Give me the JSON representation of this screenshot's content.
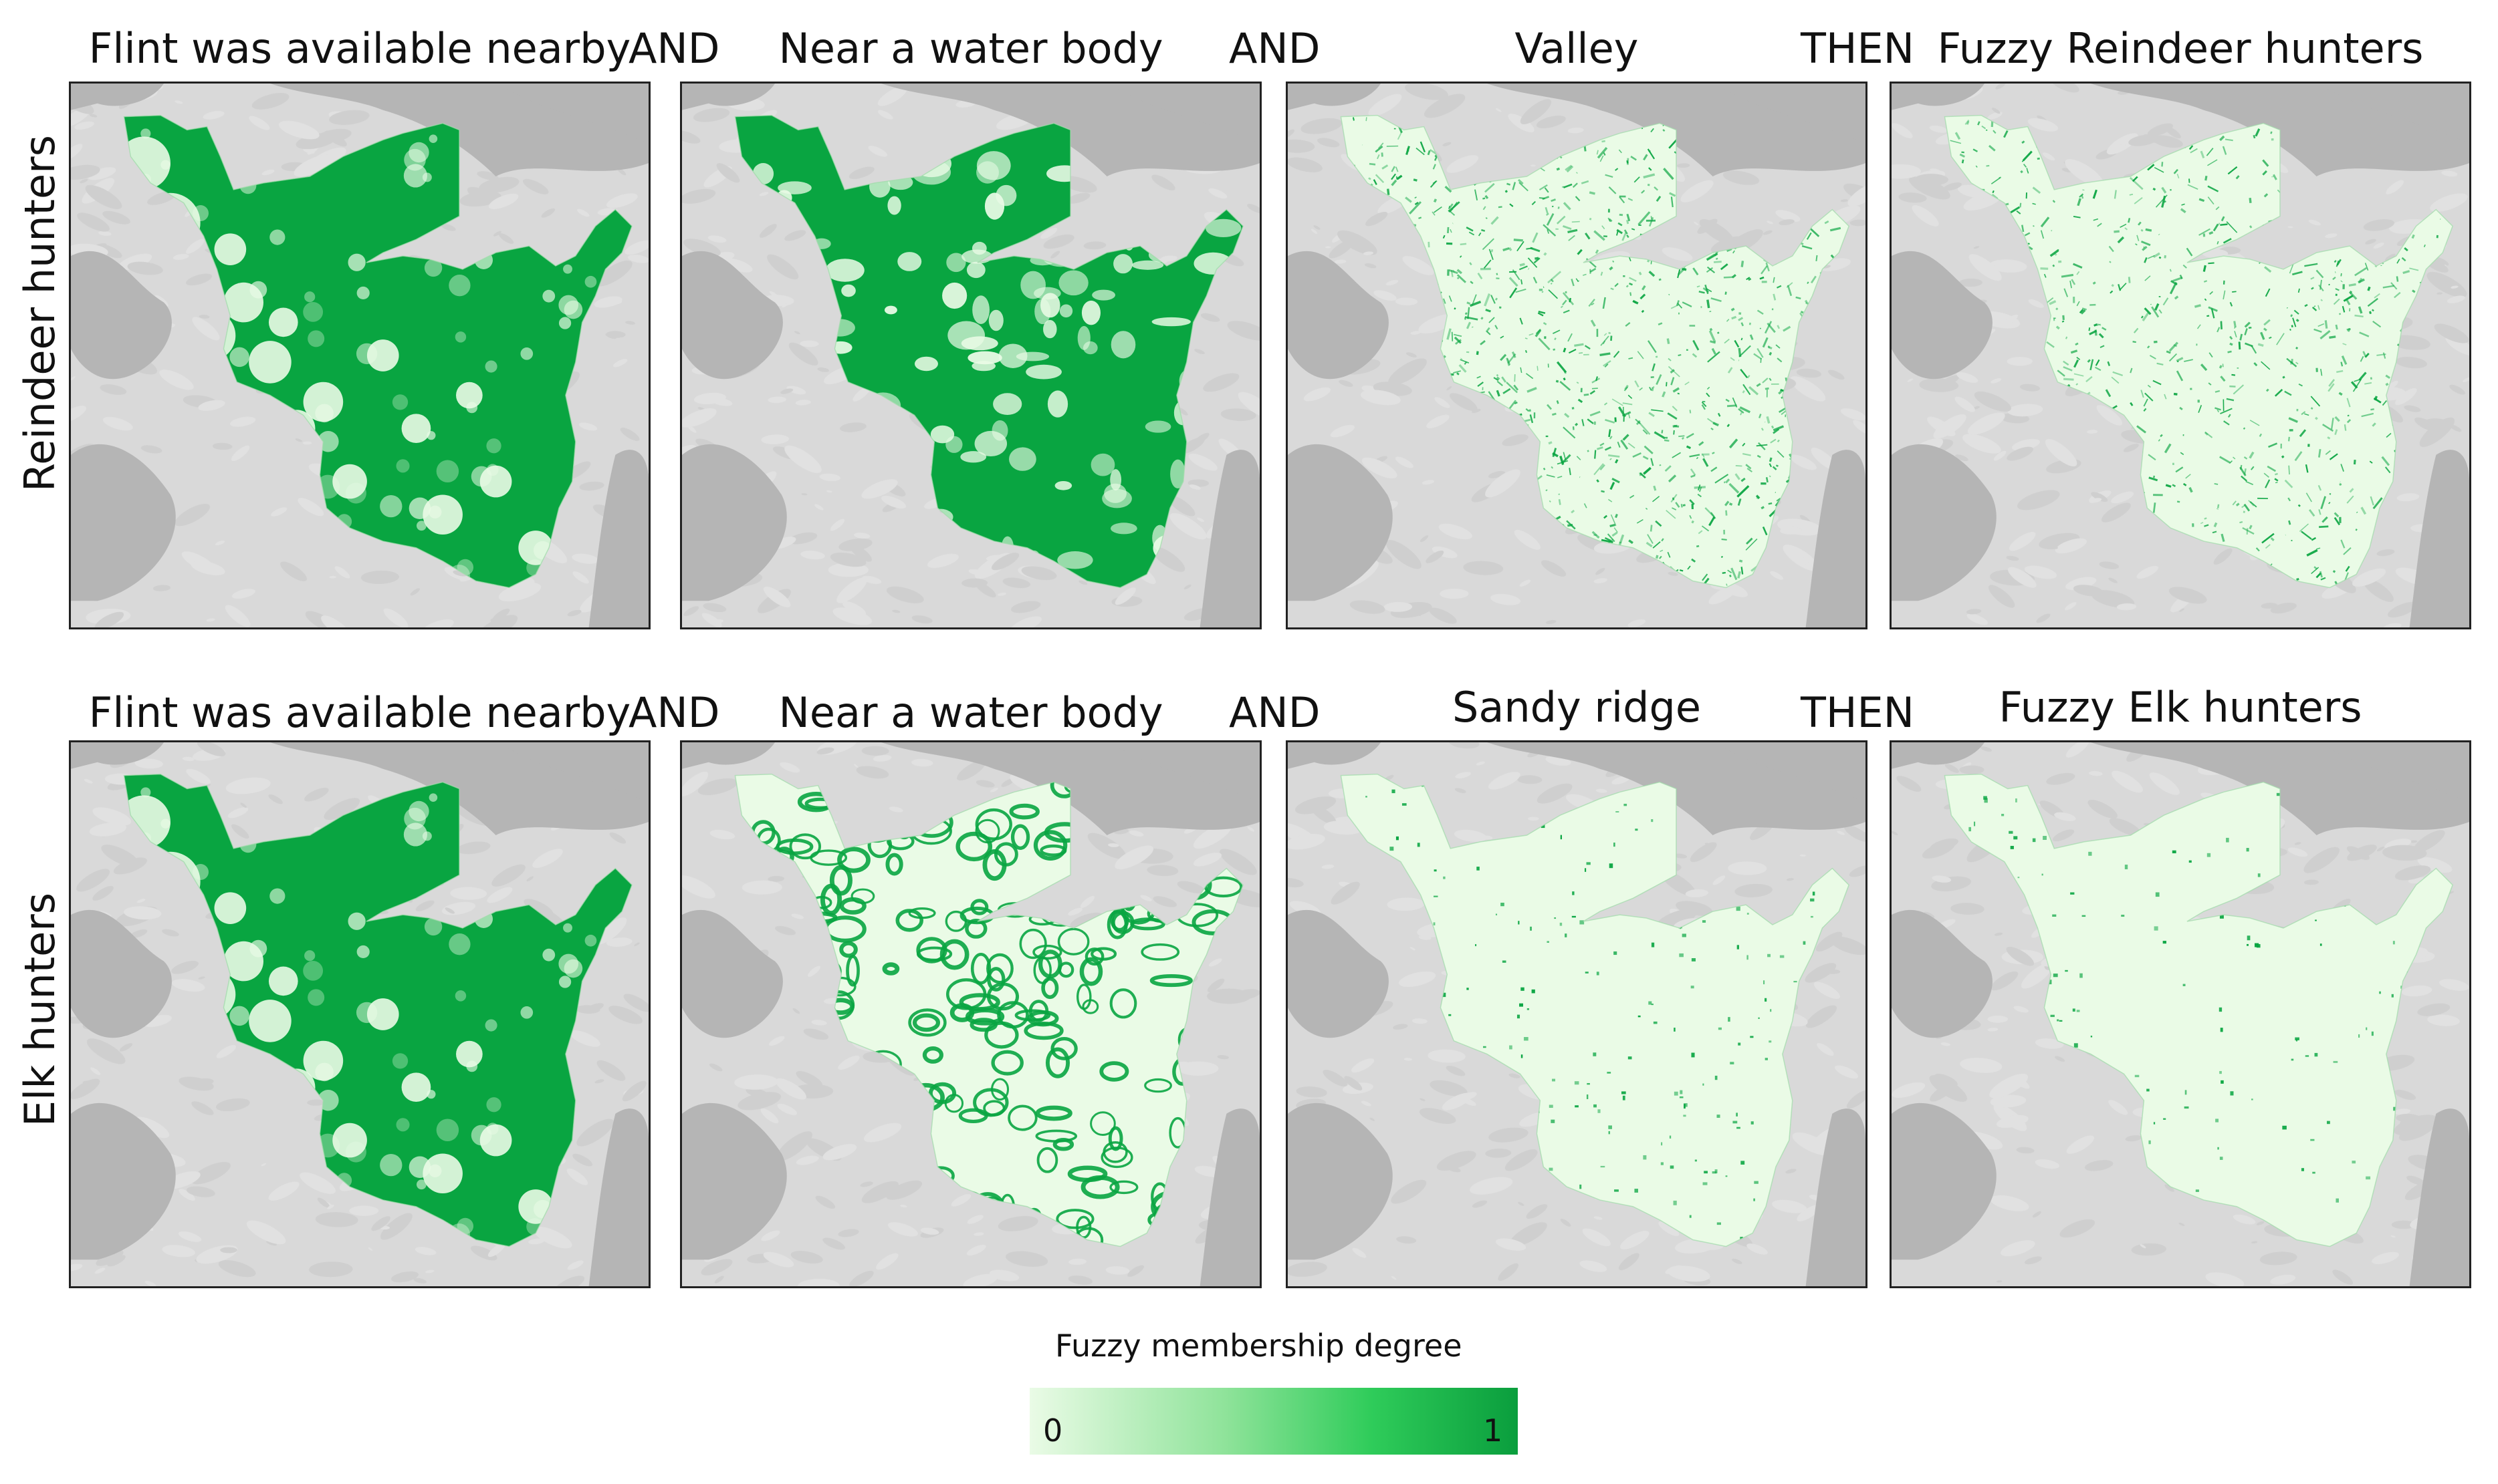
{
  "rows": [
    {
      "label": "Reindeer hunters",
      "panels": [
        {
          "title": "Flint was available nearby",
          "pattern": "flint",
          "membership": 0.85
        },
        {
          "title": "Near a water body",
          "pattern": "water-dense",
          "membership": 0.8
        },
        {
          "title": "Valley",
          "pattern": "valley",
          "membership": 0.35
        },
        {
          "title": "Fuzzy Reindeer hunters",
          "pattern": "result-reindeer",
          "membership": 0.3
        }
      ],
      "operators": [
        "AND",
        "AND",
        "THEN"
      ]
    },
    {
      "label": "Elk hunters",
      "panels": [
        {
          "title": "Flint was available nearby",
          "pattern": "flint",
          "membership": 0.85
        },
        {
          "title": "Near a water body",
          "pattern": "water-rings",
          "membership": 0.55
        },
        {
          "title": "Sandy ridge",
          "pattern": "sparse",
          "membership": 0.08
        },
        {
          "title": "Fuzzy Elk hunters",
          "pattern": "sparse-light",
          "membership": 0.05
        }
      ],
      "operators": [
        "AND",
        "AND",
        "THEN"
      ]
    }
  ],
  "legend": {
    "title": "Fuzzy membership degree",
    "min_label": "0",
    "max_label": "1",
    "colors": [
      "#eafbe6",
      "#8fe39a",
      "#2fcc5a",
      "#0a9e3d"
    ]
  },
  "map_colors": {
    "background_land": "#d9d9d9",
    "water_gray": "#b5b5b5",
    "study_area_light": "#eafbe6",
    "high_membership": "#09a541"
  }
}
